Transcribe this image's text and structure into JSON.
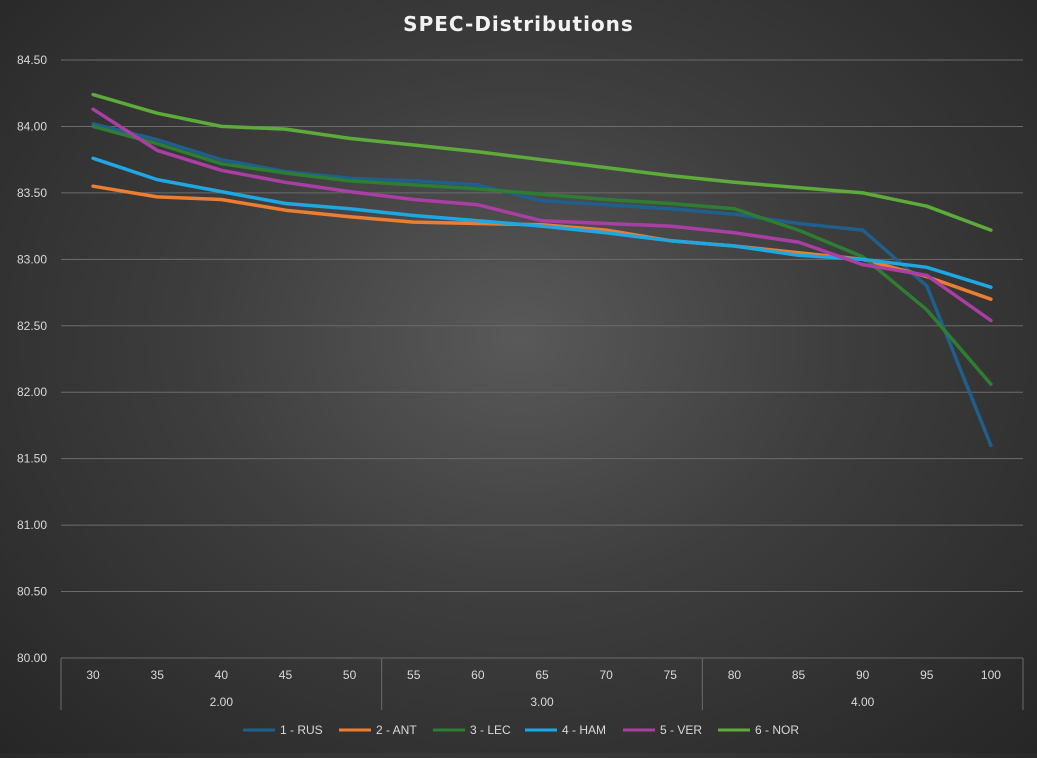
{
  "chart_data": {
    "type": "line",
    "title": "SPEC-Distributions",
    "xlabel": "",
    "ylabel": "",
    "ylim": [
      80.0,
      84.5
    ],
    "y_ticks": [
      "80.00",
      "80.50",
      "81.00",
      "81.50",
      "82.00",
      "82.50",
      "83.00",
      "83.50",
      "84.00",
      "84.50"
    ],
    "y_tick_values": [
      80.0,
      80.5,
      81.0,
      81.5,
      82.0,
      82.5,
      83.0,
      83.5,
      84.0,
      84.5
    ],
    "categories": [
      "30",
      "35",
      "40",
      "45",
      "50",
      "55",
      "60",
      "65",
      "70",
      "75",
      "80",
      "85",
      "90",
      "95",
      "100"
    ],
    "groups": [
      {
        "label": "2.00",
        "start": 0,
        "end": 4
      },
      {
        "label": "3.00",
        "start": 5,
        "end": 9
      },
      {
        "label": "4.00",
        "start": 10,
        "end": 14
      }
    ],
    "grid": true,
    "legend_position": "bottom",
    "series": [
      {
        "name": "1 - RUS",
        "color": "#1f5f8b",
        "values": [
          84.02,
          83.9,
          83.75,
          83.66,
          83.61,
          83.59,
          83.56,
          83.44,
          83.41,
          83.38,
          83.34,
          83.27,
          83.22,
          82.8,
          81.6
        ]
      },
      {
        "name": "2 - ANT",
        "color": "#ed7d31",
        "values": [
          83.55,
          83.47,
          83.45,
          83.37,
          83.32,
          83.28,
          83.27,
          83.26,
          83.22,
          83.14,
          83.1,
          83.05,
          83.0,
          82.87,
          82.7
        ]
      },
      {
        "name": "3 - LEC",
        "color": "#2f7d32",
        "values": [
          84.0,
          83.87,
          83.72,
          83.65,
          83.59,
          83.56,
          83.53,
          83.49,
          83.45,
          83.42,
          83.38,
          83.22,
          83.02,
          82.62,
          82.06
        ]
      },
      {
        "name": "4 - HAM",
        "color": "#1ea7e1",
        "values": [
          83.76,
          83.6,
          83.51,
          83.42,
          83.38,
          83.33,
          83.29,
          83.25,
          83.2,
          83.14,
          83.1,
          83.03,
          83.0,
          82.94,
          82.79
        ]
      },
      {
        "name": "5 - VER",
        "color": "#a93ea3",
        "values": [
          84.13,
          83.82,
          83.67,
          83.58,
          83.51,
          83.45,
          83.41,
          83.29,
          83.27,
          83.25,
          83.2,
          83.13,
          82.96,
          82.88,
          82.54
        ]
      },
      {
        "name": "6 - NOR",
        "color": "#5dab3a",
        "values": [
          84.24,
          84.1,
          84.0,
          83.98,
          83.91,
          83.86,
          83.81,
          83.75,
          83.69,
          83.63,
          83.58,
          83.54,
          83.5,
          83.4,
          83.22
        ]
      }
    ]
  }
}
